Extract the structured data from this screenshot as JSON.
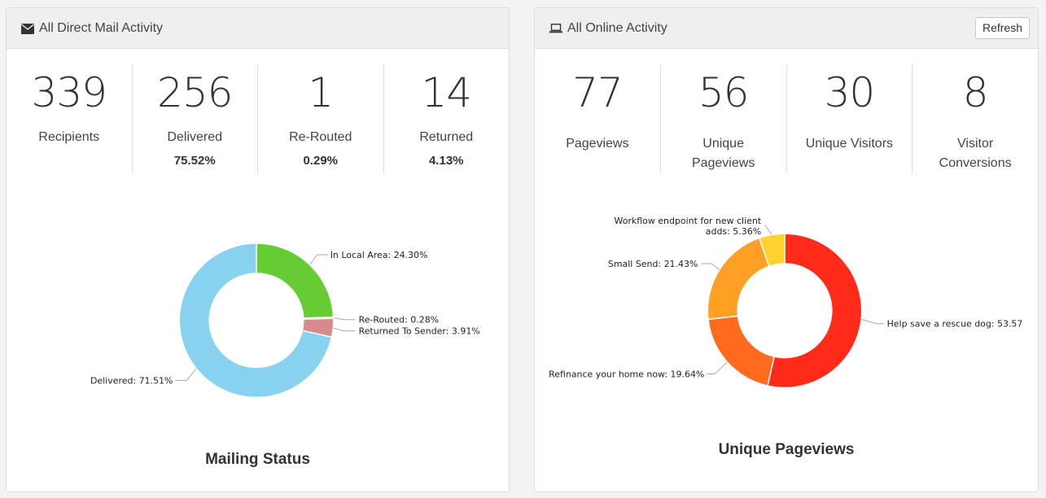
{
  "left_panel": {
    "title": "All Direct Mail Activity",
    "icon": "envelope-icon",
    "stats": [
      {
        "value": "339",
        "label": "Recipients",
        "pct": ""
      },
      {
        "value": "256",
        "label": "Delivered",
        "pct": "75.52%"
      },
      {
        "value": "1",
        "label": "Re-Routed",
        "pct": "0.29%"
      },
      {
        "value": "14",
        "label": "Returned",
        "pct": "4.13%"
      }
    ],
    "chart_title": "Mailing Status"
  },
  "right_panel": {
    "title": "All Online Activity",
    "icon": "laptop-icon",
    "refresh_label": "Refresh",
    "stats": [
      {
        "value": "77",
        "label_line1": "Pageviews",
        "label_line2": ""
      },
      {
        "value": "56",
        "label_line1": "Unique",
        "label_line2": "Pageviews"
      },
      {
        "value": "30",
        "label_line1": "Unique Visitors",
        "label_line2": ""
      },
      {
        "value": "8",
        "label_line1": "Visitor",
        "label_line2": "Conversions"
      }
    ],
    "chart_title": "Unique Pageviews"
  },
  "chart_data": [
    {
      "type": "pie",
      "title": "Mailing Status",
      "slices": [
        {
          "name": "In Local Area",
          "value": 24.3,
          "label": "In Local Area: 24.30%",
          "color": "#66cc33"
        },
        {
          "name": "Re-Routed",
          "value": 0.28,
          "label": "Re-Routed: 0.28%",
          "color": "#e07070"
        },
        {
          "name": "Returned To Sender",
          "value": 3.91,
          "label": "Returned To Sender: 3.91%",
          "color": "#d88a8a"
        },
        {
          "name": "Delivered",
          "value": 71.51,
          "label": "Delivered: 71.51%",
          "color": "#87d3ef"
        }
      ]
    },
    {
      "type": "pie",
      "title": "Unique Pageviews",
      "slices": [
        {
          "name": "Help save a rescue dog",
          "value": 53.57,
          "label": "Help save a rescue dog: 53.57",
          "color": "#ff2a19"
        },
        {
          "name": "Refinance your home now",
          "value": 19.64,
          "label": "Refinance your home now: 19.64%",
          "color": "#ff6a1f"
        },
        {
          "name": "Small Send",
          "value": 21.43,
          "label": "Small Send: 21.43%",
          "color": "#ffa024"
        },
        {
          "name": "Workflow endpoint for new client adds",
          "value": 5.36,
          "label_line1": "Workflow endpoint for new client",
          "label_line2": "adds: 5.36%",
          "color": "#ffd12e"
        }
      ]
    }
  ]
}
